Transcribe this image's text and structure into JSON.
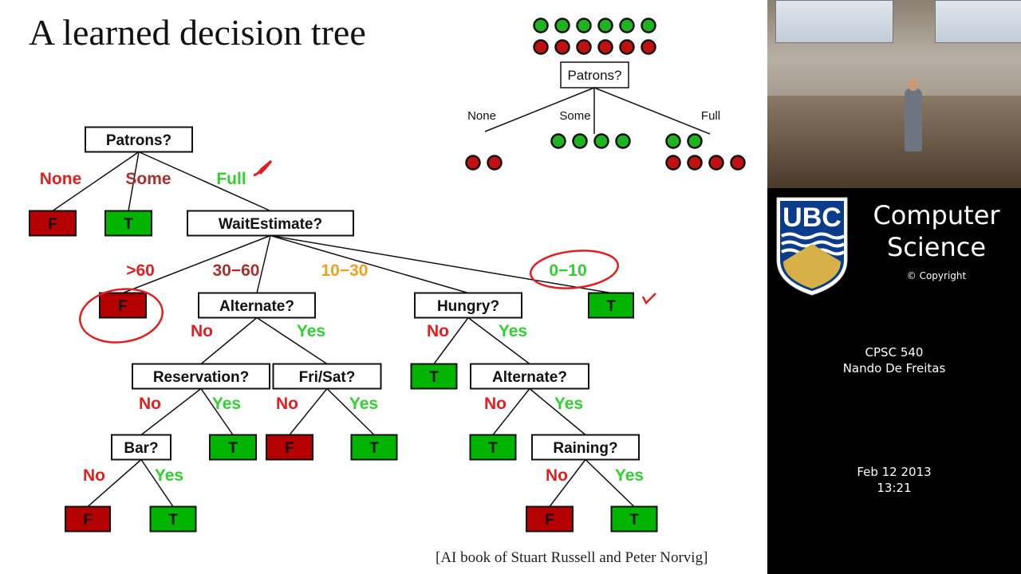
{
  "slide": {
    "title": "A learned decision tree",
    "citation": "[AI book of Stuart Russell and Peter Norvig]",
    "colors": {
      "true_leaf": "#00b400",
      "false_leaf": "#b40000",
      "none": "#e02020",
      "some": "#a83030",
      "full": "#30d030",
      "mid": "#f0a020",
      "annotation": "#e02020"
    },
    "tree": {
      "nodes": [
        {
          "id": "patrons",
          "label": "Patrons?",
          "type": "test"
        },
        {
          "id": "wait",
          "label": "WaitEstimate?",
          "type": "test"
        },
        {
          "id": "alt1",
          "label": "Alternate?",
          "type": "test"
        },
        {
          "id": "hungry",
          "label": "Hungry?",
          "type": "test"
        },
        {
          "id": "res",
          "label": "Reservation?",
          "type": "test"
        },
        {
          "id": "frisat",
          "label": "Fri/Sat?",
          "type": "test"
        },
        {
          "id": "alt2",
          "label": "Alternate?",
          "type": "test"
        },
        {
          "id": "bar",
          "label": "Bar?",
          "type": "test"
        },
        {
          "id": "rain",
          "label": "Raining?",
          "type": "test"
        },
        {
          "id": "f1",
          "label": "F",
          "type": "false"
        },
        {
          "id": "t1",
          "label": "T",
          "type": "true"
        },
        {
          "id": "f2",
          "label": "F",
          "type": "false"
        },
        {
          "id": "t2",
          "label": "T",
          "type": "true"
        },
        {
          "id": "t3",
          "label": "T",
          "type": "true"
        },
        {
          "id": "t4",
          "label": "T",
          "type": "true"
        },
        {
          "id": "f3",
          "label": "F",
          "type": "false"
        },
        {
          "id": "t5",
          "label": "T",
          "type": "true"
        },
        {
          "id": "t6",
          "label": "T",
          "type": "true"
        },
        {
          "id": "f4",
          "label": "F",
          "type": "false"
        },
        {
          "id": "t7",
          "label": "T",
          "type": "true"
        },
        {
          "id": "f5",
          "label": "F",
          "type": "false"
        },
        {
          "id": "t8",
          "label": "T",
          "type": "true"
        }
      ],
      "edges": [
        {
          "from": "patrons",
          "to": "f1",
          "label": "None",
          "color": "none"
        },
        {
          "from": "patrons",
          "to": "t1",
          "label": "Some",
          "color": "some"
        },
        {
          "from": "patrons",
          "to": "wait",
          "label": "Full",
          "color": "full"
        },
        {
          "from": "wait",
          "to": "f2",
          "label": ">60",
          "color": "none"
        },
        {
          "from": "wait",
          "to": "alt1",
          "label": "30−60",
          "color": "some"
        },
        {
          "from": "wait",
          "to": "hungry",
          "label": "10−30",
          "color": "mid"
        },
        {
          "from": "wait",
          "to": "t2",
          "label": "0−10",
          "color": "full"
        },
        {
          "from": "alt1",
          "to": "res",
          "label": "No",
          "color": "none"
        },
        {
          "from": "alt1",
          "to": "frisat",
          "label": "Yes",
          "color": "full"
        },
        {
          "from": "hungry",
          "to": "t3",
          "label": "No",
          "color": "none"
        },
        {
          "from": "hungry",
          "to": "alt2",
          "label": "Yes",
          "color": "full"
        },
        {
          "from": "res",
          "to": "bar",
          "label": "No",
          "color": "none"
        },
        {
          "from": "res",
          "to": "t4",
          "label": "Yes",
          "color": "full"
        },
        {
          "from": "frisat",
          "to": "f3",
          "label": "No",
          "color": "none"
        },
        {
          "from": "frisat",
          "to": "t5",
          "label": "Yes",
          "color": "full"
        },
        {
          "from": "alt2",
          "to": "t6",
          "label": "No",
          "color": "none"
        },
        {
          "from": "alt2",
          "to": "rain",
          "label": "Yes",
          "color": "full"
        },
        {
          "from": "bar",
          "to": "f4",
          "label": "No",
          "color": "none"
        },
        {
          "from": "bar",
          "to": "t7",
          "label": "Yes",
          "color": "full"
        },
        {
          "from": "rain",
          "to": "f5",
          "label": "No",
          "color": "none"
        },
        {
          "from": "rain",
          "to": "t8",
          "label": "Yes",
          "color": "full"
        }
      ]
    },
    "split_example": {
      "root_label": "Patrons?",
      "root_positive": 6,
      "root_negative": 6,
      "branches": [
        {
          "label": "None",
          "positive": 0,
          "negative": 2
        },
        {
          "label": "Some",
          "positive": 4,
          "negative": 0
        },
        {
          "label": "Full",
          "positive": 2,
          "negative": 4
        }
      ]
    }
  },
  "sidebar": {
    "logo": "UBC",
    "department_line1": "Computer",
    "department_line2": "Science",
    "copyright": "© Copyright",
    "course": "CPSC 540",
    "instructor": "Nando De Freitas",
    "date": "Feb 12 2013",
    "time": "13:21"
  }
}
